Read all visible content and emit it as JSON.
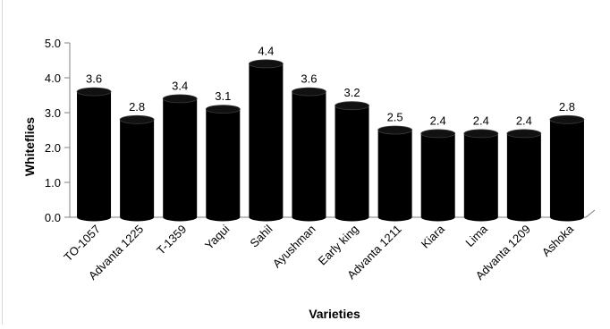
{
  "chart_data": {
    "type": "bar",
    "categories": [
      "TO-1057",
      "Advanta 1225",
      "T-1359",
      "Yaqui",
      "Sahil",
      "Ayushman",
      "Early king",
      "Advanta 1211",
      "Kiara",
      "Lima",
      "Advanta 1209",
      "Ashoka"
    ],
    "values": [
      3.6,
      2.8,
      3.4,
      3.1,
      4.4,
      3.6,
      3.2,
      2.5,
      2.4,
      2.4,
      2.4,
      2.8
    ],
    "data_labels": [
      "3.6",
      "2.8",
      "3.4",
      "3.1",
      "4.4",
      "3.6",
      "3.2",
      "2.5",
      "2.4",
      "2.4",
      "2.4",
      "2.8"
    ],
    "title": "",
    "xlabel": "Varieties",
    "ylabel": "Whiteflies",
    "ylim": [
      0,
      5
    ],
    "yticks": [
      "0.0",
      "1.0",
      "2.0",
      "3.0",
      "4.0",
      "5.0"
    ],
    "grid": false,
    "legend": "none",
    "bar_color": "#000000"
  }
}
